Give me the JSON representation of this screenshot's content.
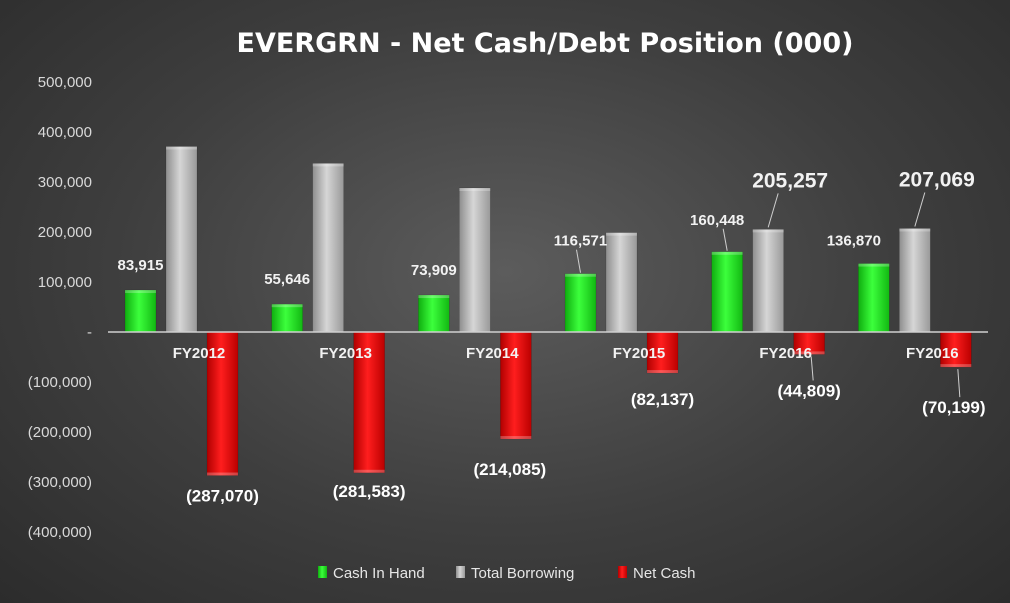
{
  "chart_data": {
    "type": "bar",
    "title": "EVERGRN - Net Cash/Debt Position (000)",
    "categories": [
      "FY2012",
      "FY2013",
      "FY2014",
      "FY2015",
      "FY2016",
      "FY2016"
    ],
    "series": [
      {
        "name": "Cash In Hand",
        "color": "#22dd22",
        "values": [
          83915,
          55646,
          73909,
          116571,
          160448,
          136870
        ],
        "labels": [
          "83,915",
          "55,646",
          "73,909",
          "116,571",
          "160,448",
          "136,870"
        ]
      },
      {
        "name": "Total Borrowing",
        "color": "#bcbcbc",
        "values": [
          370985,
          337229,
          287994,
          198708,
          205257,
          207069
        ],
        "labels": [
          "",
          "",
          "",
          "",
          "205,257",
          "207,069"
        ]
      },
      {
        "name": "Net Cash",
        "color": "#ee1111",
        "values": [
          -287070,
          -281583,
          -214085,
          -82137,
          -44809,
          -70199
        ],
        "labels": [
          "(287,070)",
          "(281,583)",
          "(214,085)",
          "(82,137)",
          "(44,809)",
          "(70,199)"
        ]
      }
    ],
    "ylim": [
      -400000,
      500000
    ],
    "yticks": [
      500000,
      400000,
      300000,
      200000,
      100000,
      0,
      -100000,
      -200000,
      -300000,
      -400000
    ],
    "ytick_labels": [
      "500,000",
      "400,000",
      "300,000",
      "200,000",
      "100,000",
      "-",
      "(100,000)",
      "(200,000)",
      "(300,000)",
      "(400,000)"
    ],
    "legend": [
      "Cash In Hand",
      "Total Borrowing",
      "Net Cash"
    ],
    "legend_position": "bottom"
  }
}
